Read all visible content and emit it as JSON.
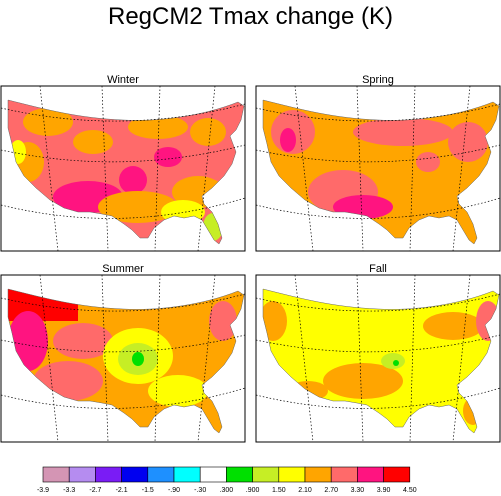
{
  "title": "RegCM2 Tmax change (K)",
  "panels": [
    {
      "id": "winter",
      "label": "Winter"
    },
    {
      "id": "spring",
      "label": "Spring"
    },
    {
      "id": "summer",
      "label": "Summer"
    },
    {
      "id": "fall",
      "label": "Fall"
    }
  ],
  "colorbar": {
    "labels": [
      "-3.9",
      "-3.3",
      "-2.7",
      "-2.1",
      "-1.5",
      "-.90",
      "-.30",
      ".300",
      ".900",
      "1.50",
      "2.10",
      "2.70",
      "3.30",
      "3.90",
      "4.50"
    ],
    "colors": [
      "#d495b4",
      "#b58cf0",
      "#7a1cf5",
      "#0000f0",
      "#1e90ff",
      "#00ffff",
      "#ffffff",
      "#00e000",
      "#c6ee25",
      "#ffff00",
      "#ffa500",
      "#ff6a6a",
      "#ff1480",
      "#ff0000"
    ]
  },
  "colors": {
    "orange": "#ffa500",
    "salmon": "#ff6a6a",
    "magenta": "#ff1480",
    "red": "#ff0000",
    "yellow": "#ffff00",
    "yellow_green": "#c6ee25",
    "green": "#00e000"
  }
}
